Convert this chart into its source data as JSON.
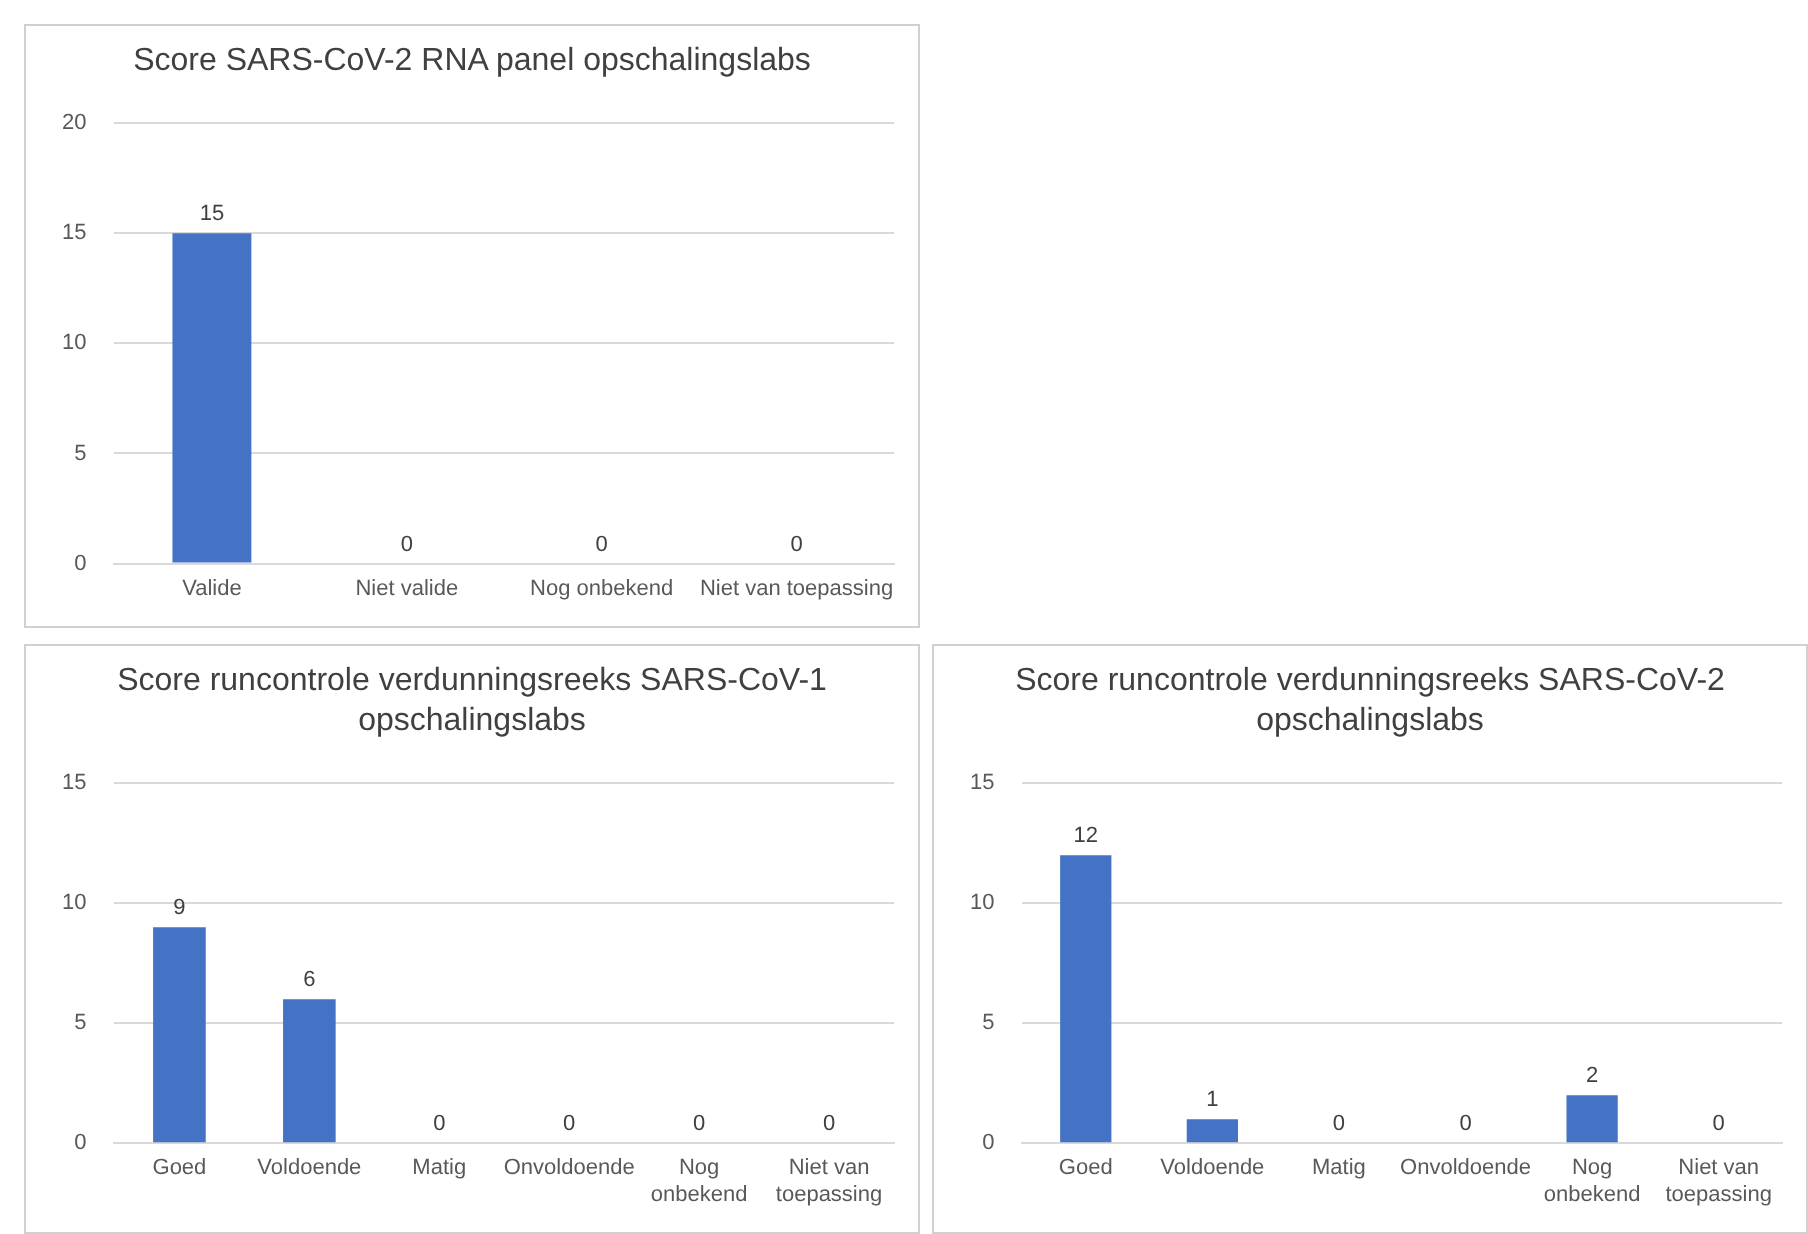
{
  "chart_data": [
    {
      "type": "bar",
      "title": "Score SARS-CoV-2 RNA panel opschalingslabs",
      "categories": [
        "Valide",
        "Niet valide",
        "Nog onbekend",
        "Niet van toepassing"
      ],
      "values": [
        15,
        0,
        0,
        0
      ],
      "color": "#4472c4",
      "ylim": [
        0,
        20
      ],
      "yticks": [
        0,
        5,
        10,
        15,
        20
      ],
      "grid": "y",
      "data_labels": true,
      "legend": false
    },
    {
      "type": "bar",
      "title": "Score runcontrole verdunningsreeks SARS-CoV-1 opschalingslabs",
      "categories": [
        "Goed",
        "Voldoende",
        "Matig",
        "Onvoldoende",
        "Nog onbekend",
        "Niet van toepassing"
      ],
      "values": [
        9,
        6,
        0,
        0,
        0,
        0
      ],
      "color": "#4472c4",
      "ylim": [
        0,
        15
      ],
      "yticks": [
        0,
        5,
        10,
        15
      ],
      "grid": "y",
      "data_labels": true,
      "legend": false
    },
    {
      "type": "bar",
      "title": "Score runcontrole verdunningsreeks SARS-CoV-2 opschalingslabs",
      "categories": [
        "Goed",
        "Voldoende",
        "Matig",
        "Onvoldoende",
        "Nog onbekend",
        "Niet van toepassing"
      ],
      "values": [
        12,
        1,
        0,
        0,
        2,
        0
      ],
      "color": "#4472c4",
      "ylim": [
        0,
        15
      ],
      "yticks": [
        0,
        5,
        10,
        15
      ],
      "grid": "y",
      "data_labels": true,
      "legend": false
    }
  ]
}
